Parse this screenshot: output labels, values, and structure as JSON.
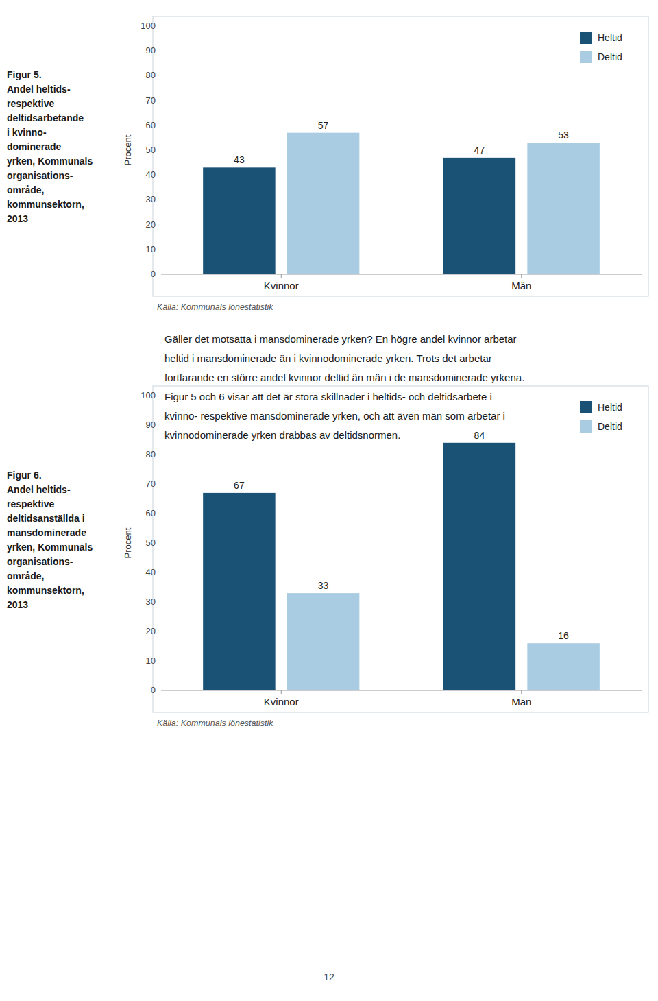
{
  "chart_data": [
    {
      "type": "bar",
      "title": "Figur 5.\nAndel heltids-\nrespektive\ndeltidsarbetande\ni kvinno-\ndominerade\nyrken, Kommunals\norganisations-\nområde,\nkommunsektorn,\n2013",
      "categories": [
        "Kvinnor",
        "Män"
      ],
      "series": [
        {
          "name": "Heltid",
          "color": "#1a5276",
          "values": [
            43,
            47
          ]
        },
        {
          "name": "Deltid",
          "color": "#a9cce3",
          "values": [
            57,
            53
          ]
        }
      ],
      "y_label": "Procent",
      "ylim": [
        0,
        100
      ],
      "yticks": [
        0,
        10,
        20,
        30,
        40,
        50,
        60,
        70,
        80,
        90,
        100
      ],
      "grid": false,
      "legend": "upper right",
      "data_labels": true,
      "source": "Källa: Kommunals lönestatistik"
    },
    {
      "type": "bar",
      "title": "Figur 6.\nAndel heltids-\nrespektive\ndeltidsanställda i\nmansdominerade\nyrken, Kommunals\norganisations-\nområde,\nkommunsektorn,\n2013",
      "categories": [
        "Kvinnor",
        "Män"
      ],
      "series": [
        {
          "name": "Heltid",
          "color": "#1a5276",
          "values": [
            67,
            84
          ]
        },
        {
          "name": "Deltid",
          "color": "#a9cce3",
          "values": [
            33,
            16
          ]
        }
      ],
      "y_label": "Procent",
      "ylim": [
        0,
        100
      ],
      "yticks": [
        0,
        10,
        20,
        30,
        40,
        50,
        60,
        70,
        80,
        90,
        100
      ],
      "grid": false,
      "legend": "upper right",
      "data_labels": true,
      "source": "Källa: Kommunals lönestatistik"
    }
  ],
  "page_text": [
    "Gäller det motsatta i mansdominerade yrken? En högre andel kvinnor arbetar",
    "heltid i mansdominerade än i kvinnodominerade yrken. Trots det arbetar",
    "fortfarande en större andel kvinnor deltid än män i de mansdominerade yrkena.",
    "Figur 5 och 6 visar att det är stora skillnader i heltids- och deltidsarbete i",
    "kvinno- respektive mansdominerade yrken, och att även män som arbetar i",
    "kvinnodominerade yrken drabbas av deltidsnormen."
  ],
  "page_number": "12"
}
